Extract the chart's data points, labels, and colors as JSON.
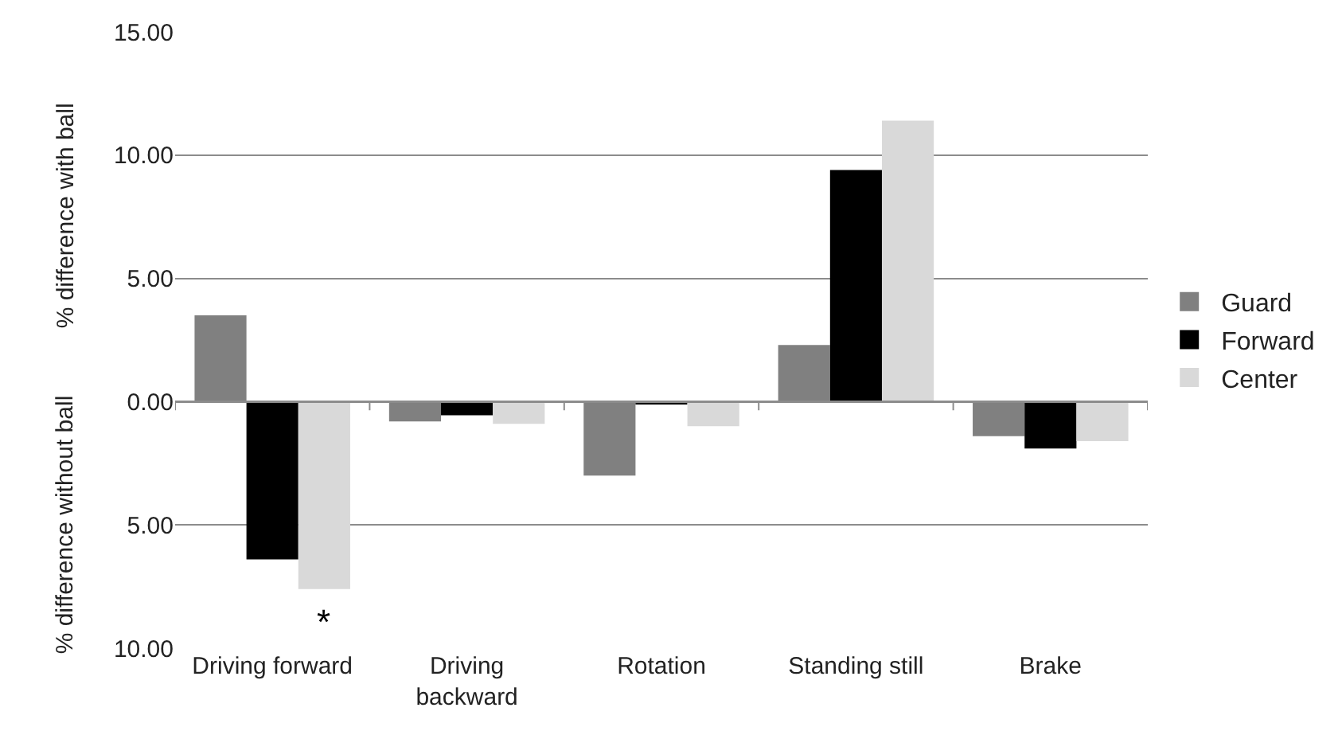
{
  "chart_data": {
    "type": "bar",
    "categories": [
      "Driving forward",
      "Driving backward",
      "Rotation",
      "Standing still",
      "Brake"
    ],
    "series": [
      {
        "name": "Guard",
        "color": "#808080",
        "values": [
          3.5,
          -0.8,
          -3.0,
          2.3,
          -1.4
        ]
      },
      {
        "name": "Forward",
        "color": "#000000",
        "values": [
          -6.4,
          -0.55,
          -0.1,
          9.4,
          -1.9
        ]
      },
      {
        "name": "Center",
        "color": "#d9d9d9",
        "values": [
          -7.6,
          -0.9,
          -1.0,
          11.4,
          -1.6
        ]
      }
    ],
    "ylim": [
      -10,
      15
    ],
    "yticks": [
      {
        "value": -10,
        "label": "10.00"
      },
      {
        "value": -5,
        "label": "5.00"
      },
      {
        "value": 0,
        "label": "0.00"
      },
      {
        "value": 5,
        "label": "5.00"
      },
      {
        "value": 10,
        "label": "10.00"
      },
      {
        "value": 15,
        "label": "15.00"
      }
    ],
    "annotations": [
      "% difference with ball",
      "% difference without ball",
      "*"
    ],
    "grid": "y",
    "legend": "right"
  }
}
